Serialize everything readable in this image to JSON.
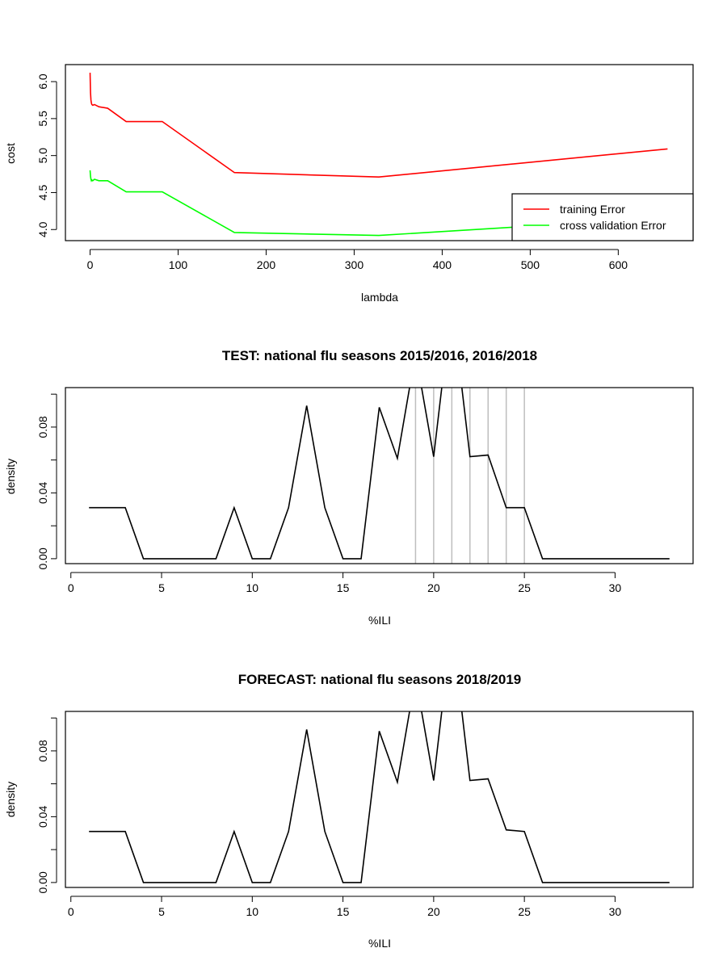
{
  "chart_data": [
    {
      "id": "cost-lambda",
      "type": "line",
      "title": "",
      "xlabel": "lambda",
      "ylabel": "cost",
      "xlim": [
        -28,
        685
      ],
      "ylim": [
        3.85,
        6.23
      ],
      "xticks": [
        0,
        100,
        200,
        300,
        400,
        500,
        600
      ],
      "yticks": [
        4.0,
        4.5,
        5.0,
        5.5,
        6.0
      ],
      "ytick_labels": [
        "4.0",
        "4.5",
        "5.0",
        "5.5",
        "6.0"
      ],
      "grid": false,
      "legend": {
        "position": "bottom-right"
      },
      "series": [
        {
          "name": "training Error",
          "color": "#ff0000",
          "x": [
            0,
            0.5,
            1,
            1.5,
            2,
            3,
            5,
            10,
            20,
            41,
            82,
            164,
            328,
            656
          ],
          "y": [
            6.12,
            5.85,
            5.75,
            5.71,
            5.69,
            5.68,
            5.69,
            5.66,
            5.64,
            5.46,
            5.46,
            4.77,
            4.71,
            5.09
          ]
        },
        {
          "name": "cross validation Error",
          "color": "#00ff00",
          "x": [
            0,
            0.5,
            1,
            1.5,
            2,
            3,
            5,
            10,
            20,
            41,
            82,
            164,
            328,
            656
          ],
          "y": [
            4.8,
            4.72,
            4.68,
            4.66,
            4.67,
            4.66,
            4.68,
            4.66,
            4.66,
            4.51,
            4.51,
            3.96,
            3.92,
            4.16
          ]
        }
      ]
    },
    {
      "id": "test-density",
      "type": "line",
      "title": "TEST: national flu seasons 2015/2016, 2016/2018",
      "xlabel": "%ILI",
      "ylabel": "density",
      "xlim": [
        -0.3,
        34.3
      ],
      "ylim": [
        -0.003,
        0.104
      ],
      "xticks": [
        0,
        5,
        10,
        15,
        20,
        25,
        30
      ],
      "yticks": [
        0.0,
        0.04,
        0.08
      ],
      "ytick_labels": [
        "0.00",
        "0.04",
        "0.08"
      ],
      "minor_yticks": [
        0.02,
        0.06,
        0.1
      ],
      "grid": false,
      "vlines": {
        "x": [
          19,
          20,
          21,
          22,
          23,
          24,
          25
        ],
        "color": "#bebebe"
      },
      "series": [
        {
          "color": "#000000",
          "x": [
            1,
            2,
            3,
            4,
            5,
            6,
            7,
            8,
            9,
            10,
            11,
            12,
            13,
            14,
            15,
            16,
            17,
            18,
            19,
            20,
            21,
            22,
            23,
            24,
            25,
            26,
            27,
            28,
            29,
            30,
            31,
            32,
            33
          ],
          "y": [
            0.031,
            0.031,
            0.031,
            0.0,
            0.0,
            0.0,
            0.0,
            0.0,
            0.031,
            0.0,
            0.0,
            0.031,
            0.093,
            0.031,
            0.0,
            0.0,
            0.092,
            0.061,
            0.125,
            0.062,
            0.156,
            0.062,
            0.063,
            0.031,
            0.031,
            0.0,
            0.0,
            0.0,
            0.0,
            0.0,
            0.0,
            0.0,
            0.0
          ]
        }
      ]
    },
    {
      "id": "forecast-density",
      "type": "line",
      "title": "FORECAST: national flu seasons 2018/2019",
      "xlabel": "%ILI",
      "ylabel": "density",
      "xlim": [
        -0.3,
        34.3
      ],
      "ylim": [
        -0.003,
        0.104
      ],
      "xticks": [
        0,
        5,
        10,
        15,
        20,
        25,
        30
      ],
      "yticks": [
        0.0,
        0.04,
        0.08
      ],
      "ytick_labels": [
        "0.00",
        "0.04",
        "0.08"
      ],
      "minor_yticks": [
        0.02,
        0.06,
        0.1
      ],
      "grid": false,
      "series": [
        {
          "color": "#000000",
          "x": [
            1,
            2,
            3,
            4,
            5,
            6,
            7,
            8,
            9,
            10,
            11,
            12,
            13,
            14,
            15,
            16,
            17,
            18,
            19,
            20,
            21,
            22,
            23,
            24,
            25,
            26,
            27,
            28,
            29,
            30,
            31,
            32,
            33
          ],
          "y": [
            0.031,
            0.031,
            0.031,
            0.0,
            0.0,
            0.0,
            0.0,
            0.0,
            0.031,
            0.0,
            0.0,
            0.031,
            0.093,
            0.031,
            0.0,
            0.0,
            0.092,
            0.061,
            0.125,
            0.062,
            0.156,
            0.062,
            0.063,
            0.032,
            0.031,
            0.0,
            0.0,
            0.0,
            0.0,
            0.0,
            0.0,
            0.0,
            0.0
          ]
        }
      ]
    }
  ]
}
